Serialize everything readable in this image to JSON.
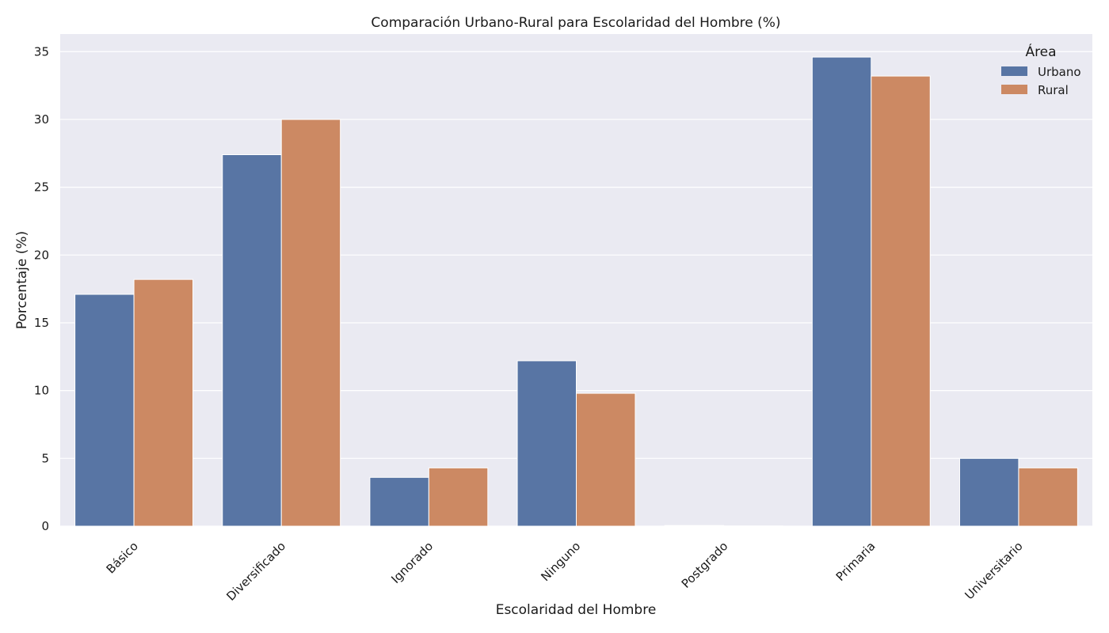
{
  "chart_data": {
    "type": "bar",
    "title": "Comparación Urbano-Rural para Escolaridad del Hombre (%)",
    "xlabel": "Escolaridad del Hombre",
    "ylabel": "Porcentaje (%)",
    "categories": [
      "Básico",
      "Diversificado",
      "Ignorado",
      "Ninguno",
      "Postgrado",
      "Primaria",
      "Universitario"
    ],
    "series": [
      {
        "name": "Urbano",
        "color": "#5875a4",
        "values": [
          17.1,
          27.4,
          3.6,
          12.2,
          0.05,
          34.6,
          5.0
        ]
      },
      {
        "name": "Rural",
        "color": "#cc8963",
        "values": [
          18.2,
          30.0,
          4.3,
          9.8,
          0.02,
          33.2,
          4.3
        ]
      }
    ],
    "ylim": [
      0,
      36.3
    ],
    "yticks": [
      0,
      5,
      10,
      15,
      20,
      25,
      30,
      35
    ],
    "grid": true,
    "legend": {
      "title": "Área",
      "position": "top-right"
    },
    "background": "#eaeaf2"
  }
}
